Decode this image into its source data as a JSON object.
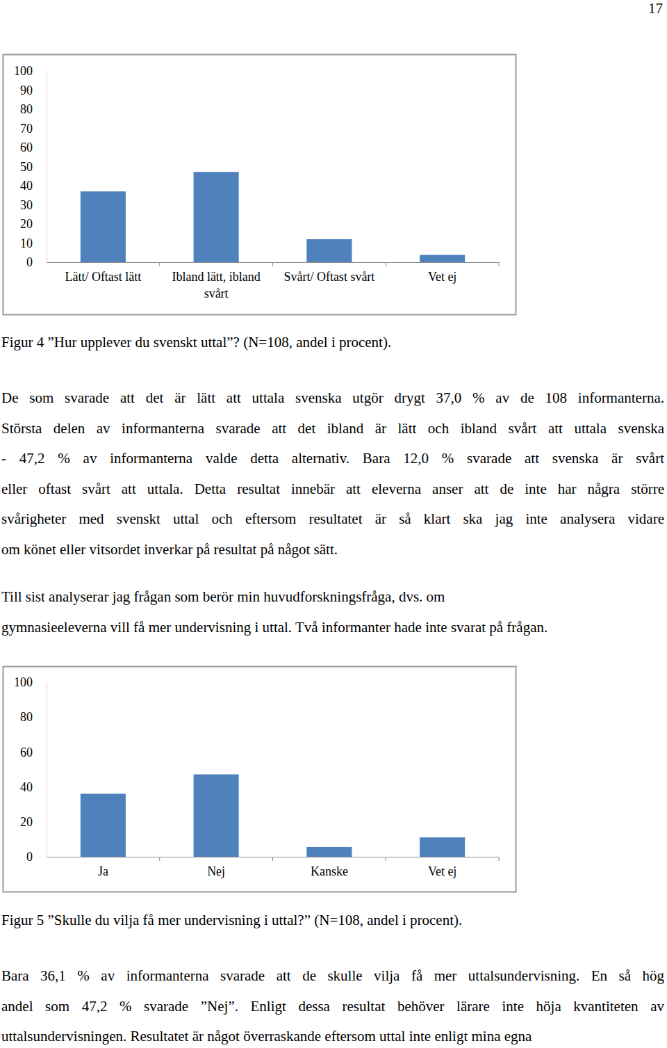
{
  "page": {
    "number": "17"
  },
  "chart_data": [
    {
      "type": "bar",
      "title": "Figur 4 ”Hur upplever du svenskt uttal”? (N=108, andel i procent).",
      "categories": [
        "Lätt/ Oftast lätt",
        "Ibland lätt, ibland svårt",
        "Svårt/ Oftast svårt",
        "Vet ej"
      ],
      "values": [
        37.0,
        47.2,
        12.0,
        3.8
      ],
      "color": "#4f81bd",
      "ylim": [
        0,
        100
      ],
      "yticks": [
        0,
        10,
        20,
        30,
        40,
        50,
        60,
        70,
        80,
        90,
        100
      ],
      "grid": false
    },
    {
      "type": "bar",
      "title": "Figur 5 ”Skulle du vilja få mer undervisning i uttal?” (N=108, andel i procent).",
      "categories": [
        "Ja",
        "Nej",
        "Kanske",
        "Vet ej"
      ],
      "values": [
        36.1,
        47.2,
        5.6,
        11.1
      ],
      "color": "#4f81bd",
      "ylim": [
        0,
        100
      ],
      "yticks": [
        0,
        20,
        40,
        60,
        80,
        100
      ],
      "grid": false
    }
  ],
  "text": {
    "paragraphs": [
      [
        "De som svarade att det är lätt att uttala svenska utgör drygt 37,0 % av de 108 informanterna.",
        "Största delen av informanterna svarade att det ibland är lätt och ibland svårt att uttala svenska",
        "- 47,2 % av informanterna valde detta alternativ. Bara 12,0 % svarade att svenska är svårt",
        "eller oftast svårt att uttala. Detta resultat innebär att eleverna anser att de inte har några större",
        "svårigheter med svenskt uttal och eftersom resultatet är så klart ska jag inte analysera vidare",
        "om könet eller vitsordet inverkar på resultat på något sätt."
      ],
      [
        "Till sist analyserar jag frågan som berör min huvudforskningsfråga, dvs. om",
        "gymnasieeleverna vill få mer undervisning i uttal. Två informanter hade inte svarat på frågan."
      ],
      [
        "Bara 36,1 % av informanterna svarade att de skulle vilja få mer uttalsundervisning. En så hög",
        "andel som 47,2 % svarade ”Nej”. Enligt dessa resultat behöver lärare inte höja kvantiteten av",
        "uttalsundervisningen. Resultatet är något överraskande eftersom uttal inte enligt mina egna"
      ]
    ]
  }
}
